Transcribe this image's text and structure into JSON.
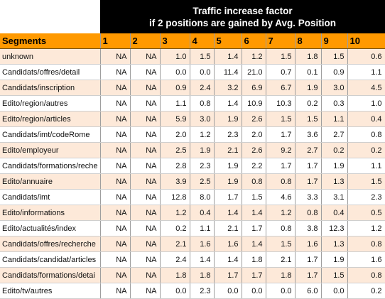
{
  "title": {
    "line1": "Traffic increase factor",
    "line2": "if 2 positions are gained by Avg. Position"
  },
  "header": {
    "segments_label": "Segments",
    "positions": [
      "1",
      "2",
      "3",
      "4",
      "5",
      "6",
      "7",
      "8",
      "9",
      "10"
    ]
  },
  "rows": [
    {
      "segment": "unknown",
      "values": [
        "NA",
        "NA",
        "1.0",
        "1.5",
        "1.4",
        "1.2",
        "1.5",
        "1.8",
        "1.5",
        "0.6"
      ]
    },
    {
      "segment": "Candidats/offres/detail",
      "values": [
        "NA",
        "NA",
        "0.0",
        "0.0",
        "11.4",
        "21.0",
        "0.7",
        "0.1",
        "0.9",
        "1.1"
      ]
    },
    {
      "segment": "Candidats/inscription",
      "values": [
        "NA",
        "NA",
        "0.9",
        "2.4",
        "3.2",
        "6.9",
        "6.7",
        "1.9",
        "3.0",
        "4.5"
      ]
    },
    {
      "segment": "Edito/region/autres",
      "values": [
        "NA",
        "NA",
        "1.1",
        "0.8",
        "1.4",
        "10.9",
        "10.3",
        "0.2",
        "0.3",
        "1.0"
      ]
    },
    {
      "segment": "Edito/region/articles",
      "values": [
        "NA",
        "NA",
        "5.9",
        "3.0",
        "1.9",
        "2.6",
        "1.5",
        "1.5",
        "1.1",
        "0.4"
      ]
    },
    {
      "segment": "Candidats/imt/codeRome",
      "values": [
        "NA",
        "NA",
        "2.0",
        "1.2",
        "2.3",
        "2.0",
        "1.7",
        "3.6",
        "2.7",
        "0.8"
      ]
    },
    {
      "segment": "Edito/employeur",
      "values": [
        "NA",
        "NA",
        "2.5",
        "1.9",
        "2.1",
        "2.6",
        "9.2",
        "2.7",
        "0.2",
        "0.2"
      ]
    },
    {
      "segment": "Candidats/formations/reche",
      "values": [
        "NA",
        "NA",
        "2.8",
        "2.3",
        "1.9",
        "2.2",
        "1.7",
        "1.7",
        "1.9",
        "1.1"
      ]
    },
    {
      "segment": "Edito/annuaire",
      "values": [
        "NA",
        "NA",
        "3.9",
        "2.5",
        "1.9",
        "0.8",
        "0.8",
        "1.7",
        "1.3",
        "1.5"
      ]
    },
    {
      "segment": "Candidats/imt",
      "values": [
        "NA",
        "NA",
        "12.8",
        "8.0",
        "1.7",
        "1.5",
        "4.6",
        "3.3",
        "3.1",
        "2.3"
      ]
    },
    {
      "segment": "Edito/informations",
      "values": [
        "NA",
        "NA",
        "1.2",
        "0.4",
        "1.4",
        "1.4",
        "1.2",
        "0.8",
        "0.4",
        "0.5"
      ]
    },
    {
      "segment": "Edito/actualités/index",
      "values": [
        "NA",
        "NA",
        "0.2",
        "1.1",
        "2.1",
        "1.7",
        "0.8",
        "3.8",
        "12.3",
        "1.2"
      ]
    },
    {
      "segment": "Candidats/offres/recherche",
      "values": [
        "NA",
        "NA",
        "2.1",
        "1.6",
        "1.6",
        "1.4",
        "1.5",
        "1.6",
        "1.3",
        "0.8"
      ]
    },
    {
      "segment": "Candidats/candidat/articles",
      "values": [
        "NA",
        "NA",
        "2.4",
        "1.4",
        "1.4",
        "1.8",
        "2.1",
        "1.7",
        "1.9",
        "1.6"
      ]
    },
    {
      "segment": "Candidats/formations/detai",
      "values": [
        "NA",
        "NA",
        "1.8",
        "1.8",
        "1.7",
        "1.7",
        "1.8",
        "1.7",
        "1.5",
        "0.8"
      ]
    },
    {
      "segment": "Edito/tv/autres",
      "values": [
        "NA",
        "NA",
        "0.0",
        "2.3",
        "0.0",
        "0.0",
        "0.0",
        "6.0",
        "0.0",
        "0.2"
      ]
    }
  ],
  "colors": {
    "header_band": "#000000",
    "header_row": "#ff9900",
    "odd_row": "#fde9d9",
    "even_row": "#ffffff"
  }
}
